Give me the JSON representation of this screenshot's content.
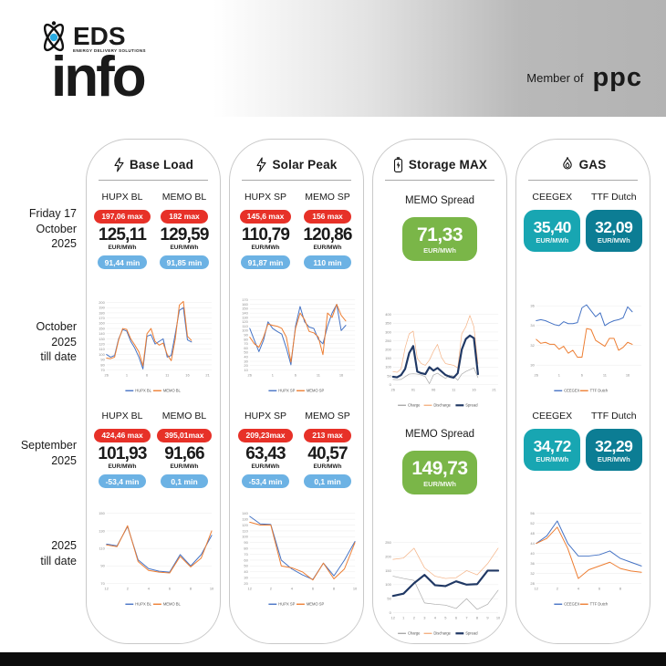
{
  "header": {
    "logo_abbr": "EDS",
    "logo_sub": "ENERGY DELIVERY SOLUTIONS",
    "logo_main": "info",
    "member_label": "Member of",
    "member_brand": "ppc"
  },
  "row_labels": {
    "day": [
      "Friday 17",
      "October",
      "2025"
    ],
    "oct": [
      "October",
      "2025",
      "till date"
    ],
    "sep": [
      "September",
      "2025"
    ],
    "ytd": [
      "2025",
      "till date"
    ]
  },
  "colors": {
    "max_pill": "#e73128",
    "min_pill": "#6cb2e4",
    "spread_box": "#7ab648",
    "ceegex_box": "#18a6b2",
    "ttf_box": "#0c7d94"
  },
  "columns": [
    {
      "title": "Base Load",
      "icon": "bolt-icon",
      "day": {
        "items": [
          {
            "label": "HUPX BL",
            "max": "197,06 max",
            "value": "125,11",
            "unit": "EUR/MWh",
            "min": "91,44 min"
          },
          {
            "label": "MEMO BL",
            "max": "182 max",
            "value": "129,59",
            "unit": "EUR/MWh",
            "min": "91,85 min"
          }
        ]
      },
      "sep": {
        "items": [
          {
            "label": "HUPX BL",
            "max": "424,46 max",
            "value": "101,93",
            "unit": "EUR/MWh",
            "min": "-53,4 min"
          },
          {
            "label": "MEMO BL",
            "max": "395,01max",
            "value": "91,66",
            "unit": "EUR/MWh",
            "min": "0,1 min"
          }
        ]
      }
    },
    {
      "title": "Solar Peak",
      "icon": "bolt-icon",
      "day": {
        "items": [
          {
            "label": "HUPX SP",
            "max": "145,6 max",
            "value": "110,79",
            "unit": "EUR/MWh",
            "min": "91,87 min"
          },
          {
            "label": "MEMO SP",
            "max": "156 max",
            "value": "120,86",
            "unit": "EUR/MWh",
            "min": "110 min"
          }
        ]
      },
      "sep": {
        "items": [
          {
            "label": "HUPX SP",
            "max": "209,23max",
            "value": "63,43",
            "unit": "EUR/MWh",
            "min": "-53,4 min"
          },
          {
            "label": "MEMO SP",
            "max": "213 max",
            "value": "40,57",
            "unit": "EUR/MWh",
            "min": "0,1 min"
          }
        ]
      }
    },
    {
      "title": "Storage MAX",
      "icon": "battery-icon",
      "day": {
        "single": {
          "label": "MEMO Spread",
          "value": "71,33",
          "unit": "EUR/MWh"
        }
      },
      "sep": {
        "single": {
          "label": "MEMO Spread",
          "value": "149,73",
          "unit": "EUR/MWh"
        }
      }
    },
    {
      "title": "GAS",
      "icon": "flame-icon",
      "day": {
        "boxes": [
          {
            "label": "CEEGEX",
            "value": "35,40",
            "unit": "EUR/MWh"
          },
          {
            "label": "TTF Dutch",
            "value": "32,09",
            "unit": "EUR/MWh"
          }
        ]
      },
      "sep": {
        "boxes": [
          {
            "label": "CEEGEX",
            "value": "34,72",
            "unit": "EUR/MWh"
          },
          {
            "label": "TTF Dutch",
            "value": "32,29",
            "unit": "EUR/MWh"
          }
        ]
      }
    }
  ],
  "chart_data": [
    {
      "type": "line",
      "column": "Base Load",
      "period": "October 2025 till date",
      "x": [
        "26",
        "27",
        "28",
        "29",
        "30",
        "1",
        "2",
        "3",
        "4",
        "5",
        "6",
        "7",
        "8",
        "9",
        "10",
        "11",
        "12",
        "13",
        "14",
        "15",
        "16",
        "17"
      ],
      "x_slots": 27,
      "x_ticks": [
        {
          "pos": 0,
          "label": "26"
        },
        {
          "pos": 5,
          "label": "1"
        },
        {
          "pos": 10,
          "label": "6"
        },
        {
          "pos": 15,
          "label": "11"
        },
        {
          "pos": 20,
          "label": "16"
        },
        {
          "pos": 25,
          "label": "21"
        }
      ],
      "ylim": [
        70,
        205
      ],
      "y_ticks": [
        70,
        80,
        90,
        100,
        110,
        120,
        130,
        140,
        150,
        160,
        170,
        180,
        190,
        200
      ],
      "series": [
        {
          "name": "HUPX BL",
          "color": "#4472c4",
          "width": 1,
          "values": [
            100,
            95,
            98,
            130,
            148,
            145,
            125,
            112,
            95,
            72,
            135,
            138,
            120,
            125,
            130,
            95,
            98,
            140,
            185,
            190,
            128,
            124
          ]
        },
        {
          "name": "MEMO BL",
          "color": "#ed7d31",
          "width": 1,
          "values": [
            93,
            92,
            95,
            128,
            150,
            148,
            130,
            118,
            105,
            78,
            140,
            150,
            125,
            118,
            122,
            100,
            88,
            130,
            195,
            202,
            135,
            127
          ]
        }
      ]
    },
    {
      "type": "line",
      "column": "Solar Peak",
      "period": "October 2025 till date",
      "x": [
        "26",
        "27",
        "28",
        "29",
        "30",
        "1",
        "2",
        "3",
        "4",
        "5",
        "6",
        "7",
        "8",
        "9",
        "10",
        "11",
        "12",
        "13",
        "14",
        "15",
        "16",
        "17"
      ],
      "x_slots": 24,
      "x_ticks": [
        {
          "pos": 0,
          "label": "26"
        },
        {
          "pos": 5,
          "label": "1"
        },
        {
          "pos": 10,
          "label": "6"
        },
        {
          "pos": 15,
          "label": "11"
        },
        {
          "pos": 20,
          "label": "16"
        }
      ],
      "ylim": [
        10,
        170
      ],
      "y_ticks": [
        10,
        20,
        30,
        40,
        50,
        60,
        70,
        80,
        90,
        100,
        110,
        120,
        130,
        140,
        150,
        160,
        170
      ],
      "series": [
        {
          "name": "HUPX SP",
          "color": "#4472c4",
          "width": 1,
          "values": [
            105,
            78,
            52,
            78,
            120,
            105,
            98,
            92,
            60,
            22,
            110,
            155,
            120,
            108,
            105,
            80,
            70,
            110,
            140,
            160,
            100,
            112
          ]
        },
        {
          "name": "MEMO SP",
          "color": "#ed7d31",
          "width": 1,
          "values": [
            85,
            70,
            62,
            85,
            115,
            112,
            110,
            105,
            85,
            28,
            105,
            140,
            125,
            98,
            95,
            85,
            45,
            140,
            130,
            160,
            135,
            122
          ]
        }
      ]
    },
    {
      "type": "line",
      "column": "Storage MAX",
      "period": "October 2025 till date",
      "x": [
        "26",
        "27",
        "28",
        "29",
        "30",
        "1",
        "2",
        "3",
        "4",
        "5",
        "6",
        "7",
        "8",
        "9",
        "10",
        "11",
        "12",
        "13",
        "14",
        "15",
        "16",
        "17"
      ],
      "x_slots": 27,
      "x_ticks": [
        {
          "pos": 0,
          "label": "26"
        },
        {
          "pos": 5,
          "label": "01"
        },
        {
          "pos": 10,
          "label": "06"
        },
        {
          "pos": 15,
          "label": "11"
        },
        {
          "pos": 20,
          "label": "16"
        },
        {
          "pos": 25,
          "label": "21"
        }
      ],
      "ylim": [
        0,
        400
      ],
      "y_ticks": [
        0,
        50,
        100,
        150,
        200,
        250,
        300,
        350,
        400
      ],
      "series": [
        {
          "name": "Charge",
          "color": "#a9a9a9",
          "width": 0.7,
          "values": [
            30,
            28,
            30,
            45,
            60,
            62,
            60,
            55,
            45,
            5,
            55,
            65,
            50,
            35,
            55,
            48,
            25,
            60,
            75,
            85,
            95,
            40
          ]
        },
        {
          "name": "Discharge",
          "color": "#f4b183",
          "width": 0.7,
          "values": [
            75,
            70,
            90,
            210,
            290,
            305,
            150,
            120,
            110,
            140,
            190,
            230,
            155,
            120,
            115,
            110,
            95,
            290,
            330,
            395,
            330,
            120
          ]
        },
        {
          "name": "Spread",
          "color": "#203864",
          "width": 2.2,
          "values": [
            45,
            42,
            55,
            90,
            180,
            220,
            75,
            65,
            60,
            100,
            80,
            95,
            75,
            55,
            45,
            40,
            65,
            200,
            260,
            280,
            265,
            60
          ]
        }
      ]
    },
    {
      "type": "line",
      "column": "GAS",
      "period": "October 2025 till date",
      "x": [
        "26",
        "27",
        "28",
        "29",
        "30",
        "1",
        "2",
        "3",
        "4",
        "5",
        "6",
        "7",
        "8",
        "9",
        "10",
        "11",
        "12",
        "13",
        "14",
        "15",
        "16",
        "17"
      ],
      "x_slots": 24,
      "x_ticks": [
        {
          "pos": 0,
          "label": "26"
        },
        {
          "pos": 5,
          "label": "1"
        },
        {
          "pos": 10,
          "label": "6"
        },
        {
          "pos": 15,
          "label": "11"
        },
        {
          "pos": 20,
          "label": "16"
        }
      ],
      "ylim": [
        29.5,
        36.6
      ],
      "y_ticks": [
        30,
        32,
        34,
        36
      ],
      "series": [
        {
          "name": "CEEGEX",
          "color": "#4472c4",
          "width": 1,
          "values": [
            34.5,
            34.6,
            34.5,
            34.3,
            34.1,
            34.0,
            34.4,
            34.2,
            34.2,
            34.3,
            35.8,
            36.1,
            35.5,
            34.9,
            35.3,
            34.0,
            34.3,
            34.5,
            34.6,
            34.8,
            35.9,
            35.4
          ]
        },
        {
          "name": "TTF Dutch",
          "color": "#ed7d31",
          "width": 1,
          "values": [
            32.6,
            32.2,
            32.3,
            32.1,
            32.1,
            31.6,
            31.9,
            31.2,
            31.5,
            30.8,
            30.8,
            33.7,
            33.6,
            32.5,
            32.2,
            31.9,
            32.7,
            32.7,
            31.5,
            31.8,
            32.3,
            32.1
          ]
        }
      ]
    },
    {
      "type": "line",
      "column": "Base Load",
      "period": "2025 till date (monthly)",
      "x": [
        "12",
        "1",
        "2",
        "3",
        "4",
        "5",
        "6",
        "7",
        "8",
        "9",
        "10"
      ],
      "x_slots": 11,
      "x_ticks": [
        {
          "pos": 0,
          "label": "12"
        },
        {
          "pos": 2,
          "label": "2"
        },
        {
          "pos": 4,
          "label": "4"
        },
        {
          "pos": 6,
          "label": "6"
        },
        {
          "pos": 8,
          "label": "8"
        },
        {
          "pos": 10,
          "label": "10"
        }
      ],
      "ylim": [
        70,
        150
      ],
      "y_ticks": [
        70,
        90,
        110,
        130,
        150
      ],
      "series": [
        {
          "name": "HUPX BL",
          "color": "#4472c4",
          "width": 1,
          "values": [
            115,
            113,
            135,
            97,
            87,
            84,
            83,
            103,
            90,
            103,
            125
          ]
        },
        {
          "name": "MEMO BL",
          "color": "#ed7d31",
          "width": 1,
          "values": [
            114,
            112,
            136,
            95,
            85,
            83,
            82,
            101,
            89,
            99,
            130
          ]
        }
      ]
    },
    {
      "type": "line",
      "column": "Solar Peak",
      "period": "2025 till date (monthly)",
      "x": [
        "12",
        "1",
        "2",
        "3",
        "4",
        "5",
        "6",
        "7",
        "8",
        "9",
        "10"
      ],
      "x_slots": 11,
      "x_ticks": [
        {
          "pos": 0,
          "label": "12"
        },
        {
          "pos": 2,
          "label": "2"
        },
        {
          "pos": 4,
          "label": "4"
        },
        {
          "pos": 6,
          "label": "6"
        },
        {
          "pos": 8,
          "label": "8"
        },
        {
          "pos": 10,
          "label": "10"
        }
      ],
      "ylim": [
        20,
        140
      ],
      "y_ticks": [
        20,
        30,
        40,
        50,
        60,
        70,
        80,
        90,
        100,
        110,
        120,
        130,
        140
      ],
      "series": [
        {
          "name": "HUPX SP",
          "color": "#4472c4",
          "width": 1,
          "values": [
            135,
            122,
            121,
            60,
            45,
            35,
            27,
            55,
            33,
            60,
            92
          ]
        },
        {
          "name": "MEMO SP",
          "color": "#ed7d31",
          "width": 1,
          "values": [
            125,
            120,
            120,
            50,
            47,
            40,
            26,
            55,
            28,
            45,
            90
          ]
        }
      ]
    },
    {
      "type": "line",
      "column": "Storage MAX",
      "period": "2025 till date (monthly)",
      "x": [
        "12",
        "1",
        "2",
        "3",
        "4",
        "5",
        "6",
        "7",
        "8",
        "9",
        "10"
      ],
      "x_slots": 11,
      "x_ticks": [
        {
          "pos": 0,
          "label": "12"
        },
        {
          "pos": 1,
          "label": "1"
        },
        {
          "pos": 2,
          "label": "2"
        },
        {
          "pos": 3,
          "label": "3"
        },
        {
          "pos": 4,
          "label": "4"
        },
        {
          "pos": 5,
          "label": "5"
        },
        {
          "pos": 6,
          "label": "6"
        },
        {
          "pos": 7,
          "label": "7"
        },
        {
          "pos": 8,
          "label": "8"
        },
        {
          "pos": 9,
          "label": "9"
        },
        {
          "pos": 10,
          "label": "10"
        }
      ],
      "ylim": [
        0,
        250
      ],
      "y_ticks": [
        0,
        50,
        100,
        150,
        200,
        250
      ],
      "series": [
        {
          "name": "Charge",
          "color": "#a9a9a9",
          "width": 0.7,
          "values": [
            130,
            122,
            115,
            35,
            30,
            27,
            15,
            50,
            12,
            30,
            80
          ]
        },
        {
          "name": "Discharge",
          "color": "#f4b183",
          "width": 0.7,
          "values": [
            190,
            195,
            230,
            160,
            130,
            122,
            125,
            150,
            135,
            175,
            230
          ]
        },
        {
          "name": "Spread",
          "color": "#203864",
          "width": 2.2,
          "values": [
            60,
            68,
            105,
            135,
            98,
            95,
            112,
            100,
            102,
            150,
            150
          ]
        }
      ]
    },
    {
      "type": "line",
      "column": "GAS",
      "period": "2025 till date (monthly)",
      "x": [
        "12",
        "1",
        "2",
        "3",
        "4",
        "5",
        "6",
        "7",
        "8",
        "9",
        "10"
      ],
      "x_slots": 11,
      "x_ticks": [
        {
          "pos": 0,
          "label": "12"
        },
        {
          "pos": 2,
          "label": "2"
        },
        {
          "pos": 4,
          "label": "4"
        },
        {
          "pos": 6,
          "label": "6"
        },
        {
          "pos": 8,
          "label": "8"
        }
      ],
      "ylim": [
        28,
        56
      ],
      "y_ticks": [
        28,
        32,
        36,
        40,
        44,
        48,
        52,
        56
      ],
      "series": [
        {
          "name": "CEEGEX",
          "color": "#4472c4",
          "width": 1,
          "values": [
            44,
            47,
            53,
            44,
            39,
            39,
            39.5,
            41,
            38,
            36.5,
            35
          ]
        },
        {
          "name": "TTF Dutch",
          "color": "#ed7d31",
          "width": 1,
          "values": [
            44,
            46,
            50.5,
            42,
            30,
            33.5,
            35,
            36.5,
            34,
            33,
            32.5
          ]
        }
      ]
    }
  ]
}
